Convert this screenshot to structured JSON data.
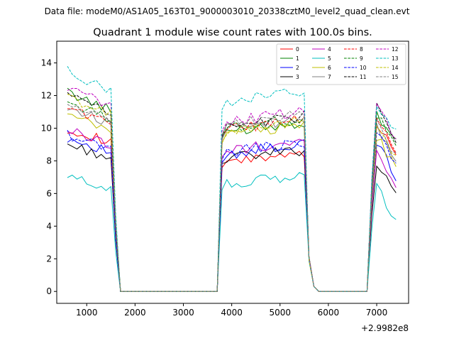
{
  "header": {
    "data_file": "Data file: modeM0/AS1A05_163T01_9000003010_20338cztM0_level2_quad_clean.evt"
  },
  "chart_data": {
    "type": "line",
    "title": "Quadrant 1 module wise count rates with 100.0s bins.",
    "xlabel": "",
    "ylabel": "",
    "x_offset_label": "+2.9982e8",
    "xlim": [
      380,
      7660
    ],
    "ylim": [
      -0.73,
      15.33
    ],
    "x_ticks": [
      1000,
      2000,
      3000,
      4000,
      5000,
      6000,
      7000
    ],
    "x_tick_labels": [
      "1000",
      "2000",
      "3000",
      "4000",
      "5000",
      "6000",
      "7000"
    ],
    "y_ticks": [
      0,
      2,
      4,
      6,
      8,
      10,
      12,
      14
    ],
    "y_tick_labels": [
      "0",
      "2",
      "4",
      "6",
      "8",
      "10",
      "12",
      "14"
    ],
    "legend_position": "top-right",
    "segments": [
      {
        "start": 600,
        "step": 100,
        "n": 10
      },
      {
        "start": 1600,
        "step": 100,
        "n": 21
      },
      {
        "start": 3700,
        "step": 100,
        "n": 19
      },
      {
        "start": 5600,
        "step": 100,
        "n": 13
      },
      {
        "start": 6900,
        "step": 100,
        "n": 6
      }
    ],
    "series": [
      {
        "name": "0",
        "color": "#ff0000",
        "dash": false,
        "base": [
          10.0,
          7.9,
          10.4
        ]
      },
      {
        "name": "1",
        "color": "#008000",
        "dash": false,
        "base": [
          12.2,
          9.8,
          11.0
        ]
      },
      {
        "name": "2",
        "color": "#0000ff",
        "dash": false,
        "base": [
          9.4,
          8.4,
          9.1
        ]
      },
      {
        "name": "3",
        "color": "#000000",
        "dash": false,
        "base": [
          9.0,
          8.1,
          7.8
        ]
      },
      {
        "name": "4",
        "color": "#bf00bf",
        "dash": false,
        "base": [
          9.9,
          8.6,
          8.6
        ]
      },
      {
        "name": "5",
        "color": "#00bfbf",
        "dash": false,
        "base": [
          7.0,
          6.5,
          6.4
        ]
      },
      {
        "name": "6",
        "color": "#bfbf00",
        "dash": false,
        "base": [
          10.8,
          9.6,
          9.5
        ]
      },
      {
        "name": "7",
        "color": "#808080",
        "dash": false,
        "base": [
          11.3,
          9.9,
          10.2
        ]
      },
      {
        "name": "8",
        "color": "#ff0000",
        "dash": true,
        "base": [
          11.3,
          9.9,
          10.5
        ]
      },
      {
        "name": "9",
        "color": "#008000",
        "dash": true,
        "base": [
          11.6,
          10.0,
          10.8
        ]
      },
      {
        "name": "10",
        "color": "#0000ff",
        "dash": true,
        "base": [
          9.6,
          8.5,
          9.8
        ]
      },
      {
        "name": "11",
        "color": "#000000",
        "dash": true,
        "base": [
          12.0,
          10.1,
          11.2
        ]
      },
      {
        "name": "12",
        "color": "#bf00bf",
        "dash": true,
        "base": [
          12.5,
          10.4,
          11.4
        ]
      },
      {
        "name": "13",
        "color": "#00bfbf",
        "dash": true,
        "base": [
          13.5,
          11.6,
          11.6
        ]
      },
      {
        "name": "14",
        "color": "#bfbf00",
        "dash": true,
        "base": [
          11.9,
          9.8,
          10.1
        ]
      },
      {
        "name": "15",
        "color": "#808080",
        "dash": true,
        "base": [
          11.5,
          10.2,
          10.3
        ]
      }
    ]
  }
}
